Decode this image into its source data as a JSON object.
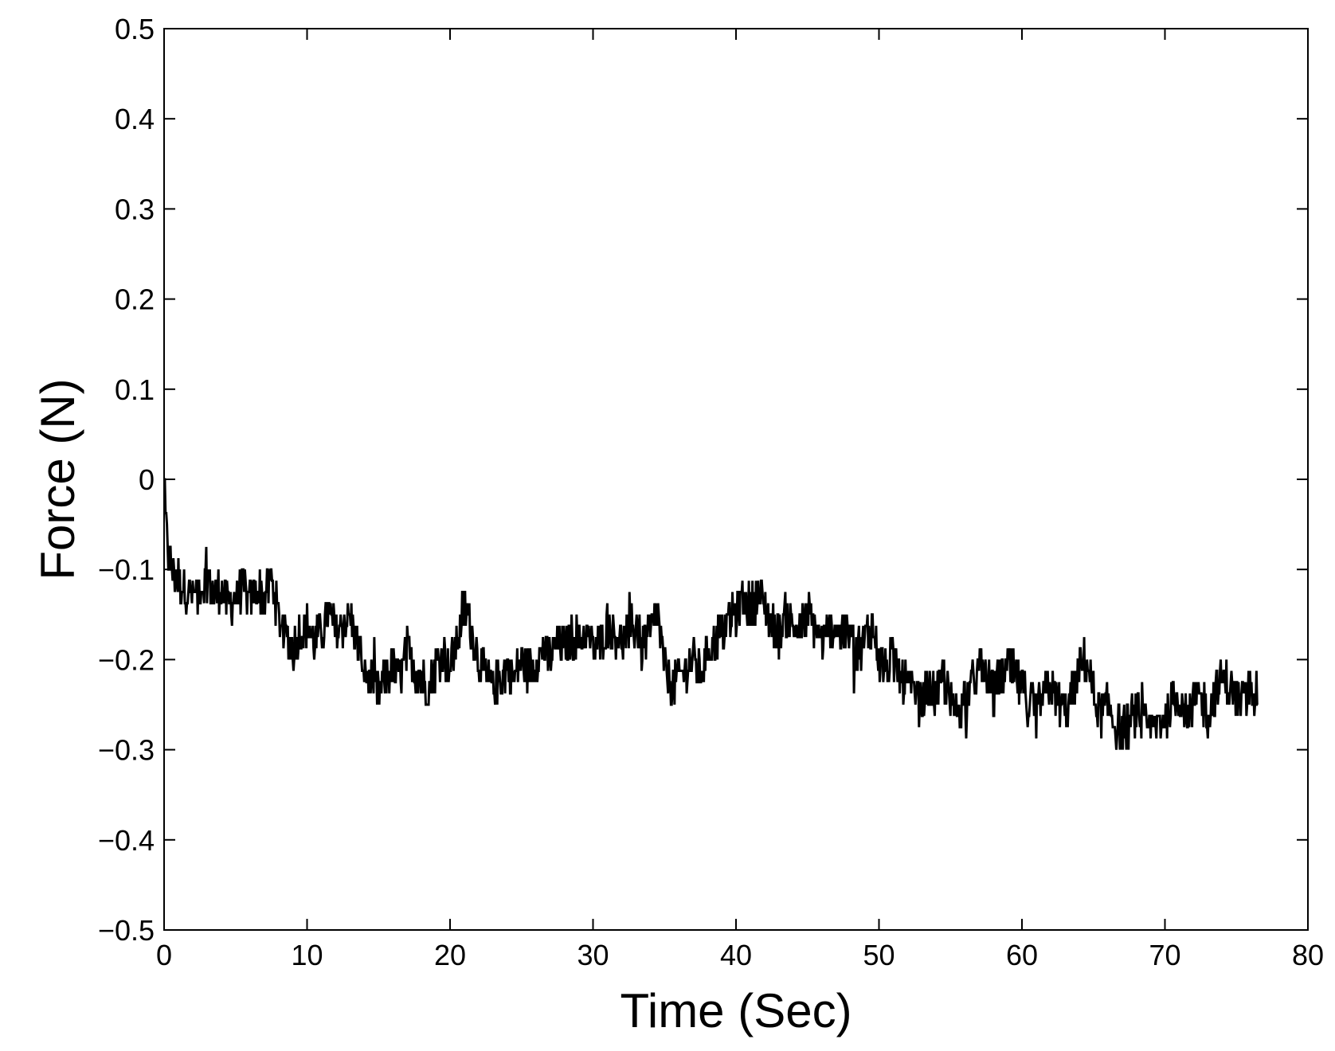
{
  "chart_data": {
    "type": "line",
    "title": "",
    "xlabel": "Time (Sec)",
    "ylabel": "Force (N)",
    "xlim": [
      0,
      80
    ],
    "ylim": [
      -0.5,
      0.5
    ],
    "xticks": [
      0,
      10,
      20,
      30,
      40,
      50,
      60,
      70,
      80
    ],
    "yticks": [
      -0.5,
      -0.4,
      -0.3,
      -0.2,
      -0.1,
      0,
      0.1,
      0.2,
      0.3,
      0.4,
      0.5
    ],
    "xtick_labels": [
      "0",
      "10",
      "20",
      "30",
      "40",
      "50",
      "60",
      "70",
      "80"
    ],
    "ytick_labels": [
      "−0.5",
      "−0.4",
      "−0.3",
      "−0.2",
      "−0.1",
      "0",
      "0.1",
      "0.2",
      "0.3",
      "0.4",
      "0.5"
    ],
    "grid": false,
    "line_color": "#000000",
    "series": [
      {
        "x": [
          0,
          0.1,
          0.3,
          0.6,
          1,
          1.5,
          2,
          2.5,
          3,
          3.5,
          4,
          4.5,
          5,
          5.5,
          6,
          6.5,
          7,
          7.5,
          8,
          8.5,
          9,
          9.5,
          10,
          10.5,
          11,
          11.5,
          12,
          12.5,
          13,
          13.5,
          14,
          14.5,
          15,
          15.5,
          16,
          16.5,
          17,
          17.5,
          18,
          18.5,
          19,
          19.5,
          20,
          20.5,
          21,
          21.5,
          22,
          22.5,
          23,
          23.5,
          24,
          24.5,
          25,
          25.5,
          26,
          26.5,
          27,
          27.5,
          28,
          28.5,
          29,
          29.5,
          30,
          30.5,
          31,
          31.5,
          32,
          32.5,
          33,
          33.5,
          34,
          34.5,
          35,
          35.5,
          36,
          36.5,
          37,
          37.5,
          38,
          38.5,
          39,
          39.5,
          40,
          40.5,
          41,
          41.5,
          42,
          42.5,
          43,
          43.5,
          44,
          44.5,
          45,
          45.5,
          46,
          46.5,
          47,
          47.5,
          48,
          48.5,
          49,
          49.5,
          50,
          50.5,
          51,
          51.5,
          52,
          52.5,
          53,
          53.5,
          54,
          54.5,
          55,
          55.5,
          56,
          56.5,
          57,
          57.5,
          58,
          58.5,
          59,
          59.5,
          60,
          60.5,
          61,
          61.5,
          62,
          62.5,
          63,
          63.5,
          64,
          64.5,
          65,
          65.5,
          66,
          66.5,
          67,
          67.5,
          68,
          68.5,
          69,
          69.5,
          70,
          70.5,
          71,
          71.5,
          72,
          72.5,
          73,
          73.5,
          74,
          74.5,
          75,
          75.5,
          76,
          76.5
        ],
        "y": [
          0.01,
          -0.05,
          -0.08,
          -0.1,
          -0.11,
          -0.12,
          -0.13,
          -0.12,
          -0.11,
          -0.13,
          -0.12,
          -0.14,
          -0.13,
          -0.12,
          -0.14,
          -0.12,
          -0.13,
          -0.11,
          -0.15,
          -0.17,
          -0.19,
          -0.17,
          -0.16,
          -0.18,
          -0.17,
          -0.15,
          -0.17,
          -0.16,
          -0.15,
          -0.18,
          -0.21,
          -0.23,
          -0.24,
          -0.22,
          -0.21,
          -0.22,
          -0.19,
          -0.21,
          -0.22,
          -0.23,
          -0.21,
          -0.19,
          -0.21,
          -0.18,
          -0.14,
          -0.17,
          -0.2,
          -0.22,
          -0.23,
          -0.22,
          -0.21,
          -0.22,
          -0.2,
          -0.21,
          -0.2,
          -0.19,
          -0.2,
          -0.18,
          -0.19,
          -0.17,
          -0.18,
          -0.17,
          -0.19,
          -0.18,
          -0.16,
          -0.17,
          -0.18,
          -0.17,
          -0.16,
          -0.18,
          -0.17,
          -0.15,
          -0.21,
          -0.23,
          -0.22,
          -0.21,
          -0.2,
          -0.22,
          -0.19,
          -0.18,
          -0.17,
          -0.16,
          -0.15,
          -0.13,
          -0.14,
          -0.13,
          -0.14,
          -0.16,
          -0.17,
          -0.15,
          -0.16,
          -0.17,
          -0.15,
          -0.16,
          -0.18,
          -0.17,
          -0.16,
          -0.18,
          -0.17,
          -0.19,
          -0.18,
          -0.16,
          -0.2,
          -0.21,
          -0.2,
          -0.22,
          -0.23,
          -0.24,
          -0.25,
          -0.23,
          -0.24,
          -0.22,
          -0.25,
          -0.26,
          -0.24,
          -0.23,
          -0.21,
          -0.22,
          -0.24,
          -0.22,
          -0.21,
          -0.22,
          -0.23,
          -0.25,
          -0.26,
          -0.24,
          -0.23,
          -0.25,
          -0.26,
          -0.24,
          -0.21,
          -0.2,
          -0.24,
          -0.26,
          -0.25,
          -0.27,
          -0.28,
          -0.27,
          -0.26,
          -0.27,
          -0.28,
          -0.27,
          -0.26,
          -0.25,
          -0.24,
          -0.26,
          -0.25,
          -0.24,
          -0.26,
          -0.24,
          -0.22,
          -0.23,
          -0.24,
          -0.25,
          -0.23,
          -0.24
        ]
      }
    ]
  }
}
